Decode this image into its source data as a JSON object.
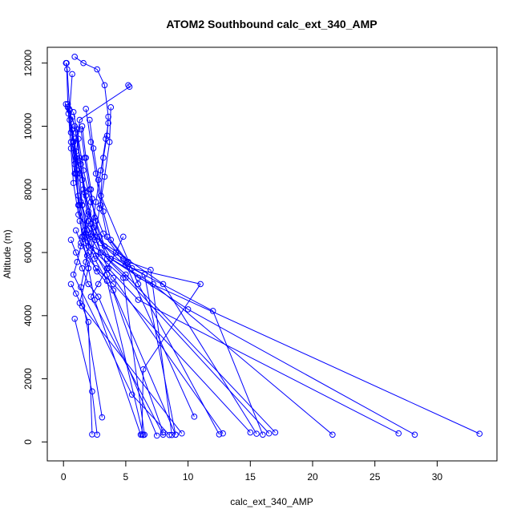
{
  "chart_data": {
    "type": "line",
    "title": "ATOM2 Southbound calc_ext_340_AMP",
    "xlabel": "calc_ext_340_AMP",
    "ylabel": "Altitude (m)",
    "xlim": [
      -1.3,
      34.8
    ],
    "ylim": [
      -600,
      12500
    ],
    "xticks": [
      0,
      5,
      10,
      15,
      20,
      25,
      30
    ],
    "yticks": [
      0,
      2000,
      4000,
      6000,
      8000,
      10000,
      12000
    ],
    "series_color": "#0000ff",
    "marker": "open-circle",
    "grid": false,
    "legend": "none",
    "profiles": [
      [
        [
          0.2,
          12000
        ],
        [
          0.3,
          11800
        ],
        [
          0.5,
          10500
        ],
        [
          0.8,
          9500
        ],
        [
          1.3,
          8500
        ],
        [
          1.5,
          7500
        ],
        [
          2.0,
          6200
        ],
        [
          4.8,
          5200
        ],
        [
          6.5,
          230
        ]
      ],
      [
        [
          0.25,
          12000
        ],
        [
          0.35,
          10700
        ],
        [
          0.6,
          9800
        ],
        [
          0.9,
          8800
        ],
        [
          1.2,
          7800
        ],
        [
          1.8,
          6500
        ],
        [
          3.5,
          5300
        ],
        [
          8.0,
          300
        ]
      ],
      [
        [
          0.9,
          12200
        ],
        [
          1.6,
          12000
        ],
        [
          2.7,
          11800
        ],
        [
          3.3,
          11300
        ],
        [
          3.6,
          10300
        ],
        [
          3.5,
          9700
        ],
        [
          3.2,
          9000
        ],
        [
          3.0,
          7800
        ],
        [
          6.0,
          5000
        ],
        [
          12.5,
          240
        ]
      ],
      [
        [
          0.7,
          11650
        ],
        [
          0.5,
          10500
        ],
        [
          0.8,
          9500
        ],
        [
          1.0,
          8500
        ],
        [
          1.2,
          7500
        ],
        [
          1.5,
          6500
        ],
        [
          2.0,
          5500
        ],
        [
          2.5,
          4500
        ],
        [
          6.2,
          230
        ]
      ],
      [
        [
          5.2,
          11300
        ],
        [
          5.3,
          11250
        ],
        [
          1.3,
          10200
        ],
        [
          1.0,
          9000
        ],
        [
          1.2,
          7500
        ],
        [
          1.8,
          6300
        ],
        [
          6.5,
          5300
        ],
        [
          9.0,
          230
        ]
      ],
      [
        [
          0.2,
          10700
        ],
        [
          0.4,
          10400
        ],
        [
          0.6,
          9300
        ],
        [
          0.8,
          8200
        ],
        [
          1.2,
          7200
        ],
        [
          2.5,
          6500
        ],
        [
          8.0,
          5000
        ],
        [
          15.5,
          260
        ]
      ],
      [
        [
          0.35,
          10600
        ],
        [
          0.9,
          10000
        ],
        [
          1.3,
          9000
        ],
        [
          1.6,
          8000
        ],
        [
          2.0,
          7000
        ],
        [
          3.0,
          6000
        ],
        [
          7.2,
          5000
        ],
        [
          21.6,
          230
        ]
      ],
      [
        [
          0.5,
          10200
        ],
        [
          0.8,
          9500
        ],
        [
          1.1,
          8500
        ],
        [
          1.5,
          7500
        ],
        [
          2.2,
          6500
        ],
        [
          3.6,
          5500
        ],
        [
          6.0,
          4500
        ],
        [
          26.9,
          270
        ]
      ],
      [
        [
          0.7,
          10300
        ],
        [
          1.0,
          9800
        ],
        [
          1.4,
          8800
        ],
        [
          1.8,
          7800
        ],
        [
          2.4,
          6800
        ],
        [
          3.8,
          5800
        ],
        [
          10.0,
          4200
        ],
        [
          28.2,
          230
        ]
      ],
      [
        [
          0.45,
          10550
        ],
        [
          0.7,
          9900
        ],
        [
          1.0,
          9200
        ],
        [
          1.5,
          8300
        ],
        [
          2.0,
          7300
        ],
        [
          3.0,
          6300
        ],
        [
          6.0,
          5200
        ],
        [
          33.4,
          260
        ]
      ],
      [
        [
          0.8,
          10450
        ],
        [
          1.2,
          9600
        ],
        [
          1.6,
          8600
        ],
        [
          2.2,
          7600
        ],
        [
          3.2,
          6600
        ],
        [
          5.0,
          5600
        ],
        [
          12.0,
          4150
        ],
        [
          16.0,
          230
        ]
      ],
      [
        [
          1.8,
          10550
        ],
        [
          2.2,
          9500
        ],
        [
          2.6,
          8500
        ],
        [
          3.0,
          7500
        ],
        [
          3.5,
          6500
        ],
        [
          5.5,
          5500
        ],
        [
          11.0,
          5000
        ],
        [
          6.4,
          2300
        ],
        [
          6.3,
          240
        ]
      ],
      [
        [
          2.1,
          10200
        ],
        [
          2.4,
          9300
        ],
        [
          2.8,
          8300
        ],
        [
          3.2,
          7300
        ],
        [
          3.8,
          6400
        ],
        [
          5.2,
          5700
        ],
        [
          7.0,
          5450
        ],
        [
          8.7,
          220
        ]
      ],
      [
        [
          1.4,
          9900
        ],
        [
          1.7,
          9000
        ],
        [
          2.1,
          8000
        ],
        [
          2.6,
          7000
        ],
        [
          3.3,
          6200
        ],
        [
          4.8,
          5800
        ],
        [
          10.5,
          800
        ]
      ],
      [
        [
          0.6,
          9500
        ],
        [
          0.9,
          8500
        ],
        [
          1.3,
          7500
        ],
        [
          1.8,
          6600
        ],
        [
          2.5,
          5800
        ],
        [
          3.5,
          5100
        ],
        [
          6.4,
          220
        ]
      ],
      [
        [
          3.6,
          10100
        ],
        [
          3.4,
          9600
        ],
        [
          3.0,
          8600
        ],
        [
          2.6,
          7600
        ],
        [
          2.2,
          6600
        ],
        [
          1.8,
          5700
        ],
        [
          1.4,
          4900
        ],
        [
          3.1,
          780
        ]
      ],
      [
        [
          3.8,
          10600
        ],
        [
          3.7,
          9500
        ],
        [
          3.3,
          8400
        ],
        [
          2.9,
          7400
        ],
        [
          2.5,
          6400
        ],
        [
          2.0,
          5500
        ],
        [
          1.3,
          4400
        ],
        [
          9.5,
          270
        ]
      ],
      [
        [
          0.9,
          9600
        ],
        [
          1.1,
          8600
        ],
        [
          1.4,
          7600
        ],
        [
          1.9,
          6700
        ],
        [
          2.6,
          5900
        ],
        [
          4.0,
          5200
        ],
        [
          12.8,
          270
        ]
      ],
      [
        [
          1.1,
          9900
        ],
        [
          1.3,
          8900
        ],
        [
          1.7,
          7900
        ],
        [
          2.2,
          6900
        ],
        [
          3.0,
          6000
        ],
        [
          5.0,
          5300
        ],
        [
          17.0,
          300
        ]
      ],
      [
        [
          0.6,
          6400
        ],
        [
          1.0,
          6000
        ],
        [
          1.5,
          5500
        ],
        [
          2.0,
          5000
        ],
        [
          2.8,
          4600
        ],
        [
          7.5,
          200
        ]
      ],
      [
        [
          0.9,
          3900
        ],
        [
          2.3,
          1600
        ],
        [
          2.7,
          230
        ]
      ],
      [
        [
          0.6,
          5000
        ],
        [
          1.0,
          4700
        ],
        [
          1.5,
          4300
        ],
        [
          2.0,
          3800
        ],
        [
          2.3,
          240
        ]
      ],
      [
        [
          1.3,
          7000
        ],
        [
          1.6,
          6500
        ],
        [
          2.0,
          6000
        ],
        [
          2.7,
          5400
        ],
        [
          4.0,
          4800
        ],
        [
          9.0,
          230
        ]
      ],
      [
        [
          1.0,
          6700
        ],
        [
          1.4,
          6300
        ],
        [
          1.9,
          5900
        ],
        [
          2.6,
          5500
        ],
        [
          4.0,
          5000
        ],
        [
          15.0,
          300
        ]
      ],
      [
        [
          2.3,
          7700
        ],
        [
          2.0,
          7200
        ],
        [
          1.7,
          6700
        ],
        [
          1.4,
          6200
        ],
        [
          1.1,
          5700
        ],
        [
          0.8,
          5300
        ],
        [
          5.5,
          1500
        ],
        [
          8.5,
          220
        ]
      ],
      [
        [
          4.8,
          6500
        ],
        [
          4.2,
          6000
        ],
        [
          3.5,
          5500
        ],
        [
          2.8,
          5000
        ],
        [
          2.2,
          4600
        ],
        [
          8.0,
          230
        ]
      ],
      [
        [
          1.5,
          10000
        ],
        [
          1.8,
          9000
        ],
        [
          2.2,
          8000
        ],
        [
          2.5,
          7100
        ],
        [
          2.9,
          6500
        ],
        [
          3.5,
          5800
        ],
        [
          5.0,
          5200
        ],
        [
          16.5,
          270
        ]
      ]
    ]
  }
}
